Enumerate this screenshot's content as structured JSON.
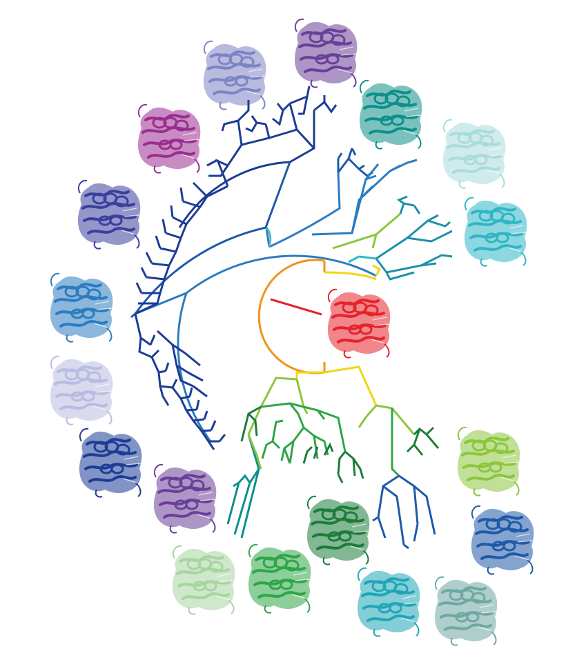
{
  "palette": {
    "root": "#e5232b",
    "root_arc": "#f29219",
    "yellow": "#f2d516",
    "lime": "#8cc63e",
    "green": "#2fa549",
    "dark_green": "#1c7c3b",
    "teal": "#0e8f8b",
    "cyan": "#2fb6c6",
    "light_cyan": "#a9dbdc",
    "sky_blue": "#2b7cc0",
    "mid_blue": "#1f5aa8",
    "navy": "#1c3c96",
    "indigo": "#3a3f9d",
    "purple": "#6a3f98",
    "magenta": "#9a2d8f",
    "lavender": "#7d84c4",
    "pale_lavender": "#b9bce0",
    "pale_green": "#a8d4a0",
    "sage": "#6fa8a2"
  },
  "structures": [
    {
      "id": "reference",
      "color": "#e5232b"
    },
    {
      "id": "magenta",
      "color": "#9a2d8f"
    },
    {
      "id": "lavender",
      "color": "#7d84c4"
    },
    {
      "id": "purple-top",
      "color": "#6a3f98"
    },
    {
      "id": "teal",
      "color": "#0e8f8b"
    },
    {
      "id": "pale-cyan",
      "color": "#a9dbdc"
    },
    {
      "id": "cyan",
      "color": "#2fb6c6"
    },
    {
      "id": "indigo",
      "color": "#3a3f9d"
    },
    {
      "id": "blue",
      "color": "#2b7cc0"
    },
    {
      "id": "pale-lavender",
      "color": "#b9bce0"
    },
    {
      "id": "navy",
      "color": "#1c3c96"
    },
    {
      "id": "purple-bottom",
      "color": "#6a3f98"
    },
    {
      "id": "pale-green",
      "color": "#a8d4a0"
    },
    {
      "id": "green",
      "color": "#2fa549"
    },
    {
      "id": "dark-green",
      "color": "#1c7c3b"
    },
    {
      "id": "cyan-bottom",
      "color": "#1fa6b8"
    },
    {
      "id": "sage",
      "color": "#6fa8a2"
    },
    {
      "id": "lime",
      "color": "#8cc63e"
    },
    {
      "id": "mid-blue",
      "color": "#1f5aa8"
    }
  ]
}
